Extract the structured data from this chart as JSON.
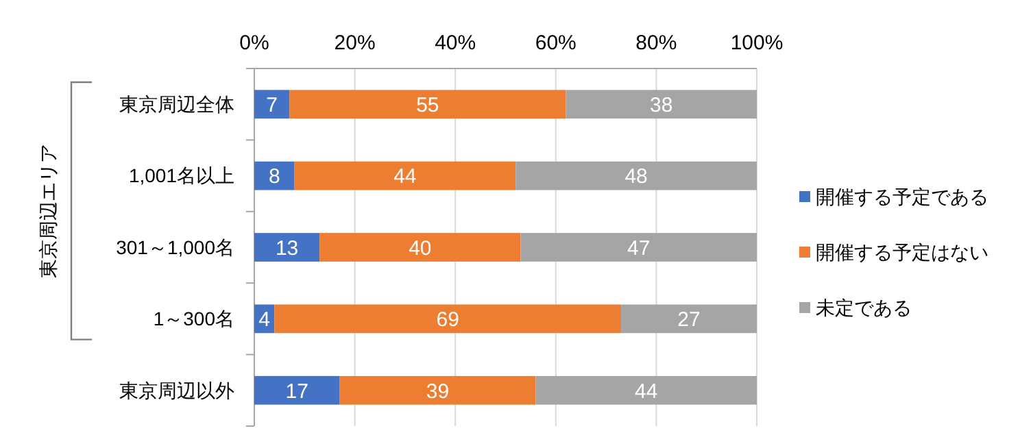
{
  "chart_data": {
    "type": "bar",
    "orientation": "horizontal",
    "stacked": true,
    "categories": [
      "東京周辺全体",
      "1,001名以上",
      "301～1,000名",
      "1～300名",
      "東京周辺以外"
    ],
    "series": [
      {
        "name": "開催する予定である",
        "color": "#4472c4",
        "values": [
          7,
          8,
          13,
          4,
          17
        ]
      },
      {
        "name": "開催する予定はない",
        "color": "#ed7d31",
        "values": [
          55,
          44,
          40,
          69,
          39
        ]
      },
      {
        "name": "未定である",
        "color": "#a5a5a5",
        "values": [
          38,
          48,
          47,
          27,
          44
        ]
      }
    ],
    "xlim": [
      0,
      100
    ],
    "xticks": [
      {
        "value": 0,
        "label": "0%"
      },
      {
        "value": 20,
        "label": "20%"
      },
      {
        "value": 40,
        "label": "40%"
      },
      {
        "value": 60,
        "label": "60%"
      },
      {
        "value": 80,
        "label": "80%"
      },
      {
        "value": 100,
        "label": "100%"
      }
    ],
    "grid": "x",
    "legend": "right",
    "data_labels": true,
    "annotations": [
      "東京周辺エリア"
    ]
  }
}
